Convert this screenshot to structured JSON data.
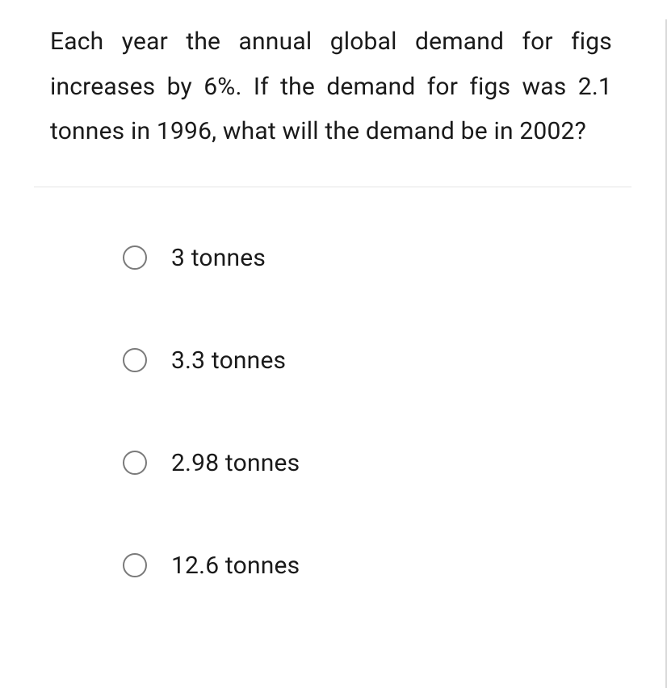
{
  "question": {
    "text": "Each year the annual global demand for figs increases by 6%. If the demand for figs was 2.1 tonnes in 1996, what will the demand be in 2002?"
  },
  "options": [
    {
      "label": "3 tonnes"
    },
    {
      "label": "3.3 tonnes"
    },
    {
      "label": "2.98 tonnes"
    },
    {
      "label": "12.6 tonnes"
    }
  ],
  "styles": {
    "font_size_question": 30,
    "font_size_option": 30,
    "text_color": "#1a1a1a",
    "radio_border_color": "#7a7a7a",
    "divider_color": "#e5e5e5",
    "right_border_color": "#d9d9d9",
    "background_color": "#ffffff",
    "radio_size": 30,
    "line_height": 1.85
  }
}
